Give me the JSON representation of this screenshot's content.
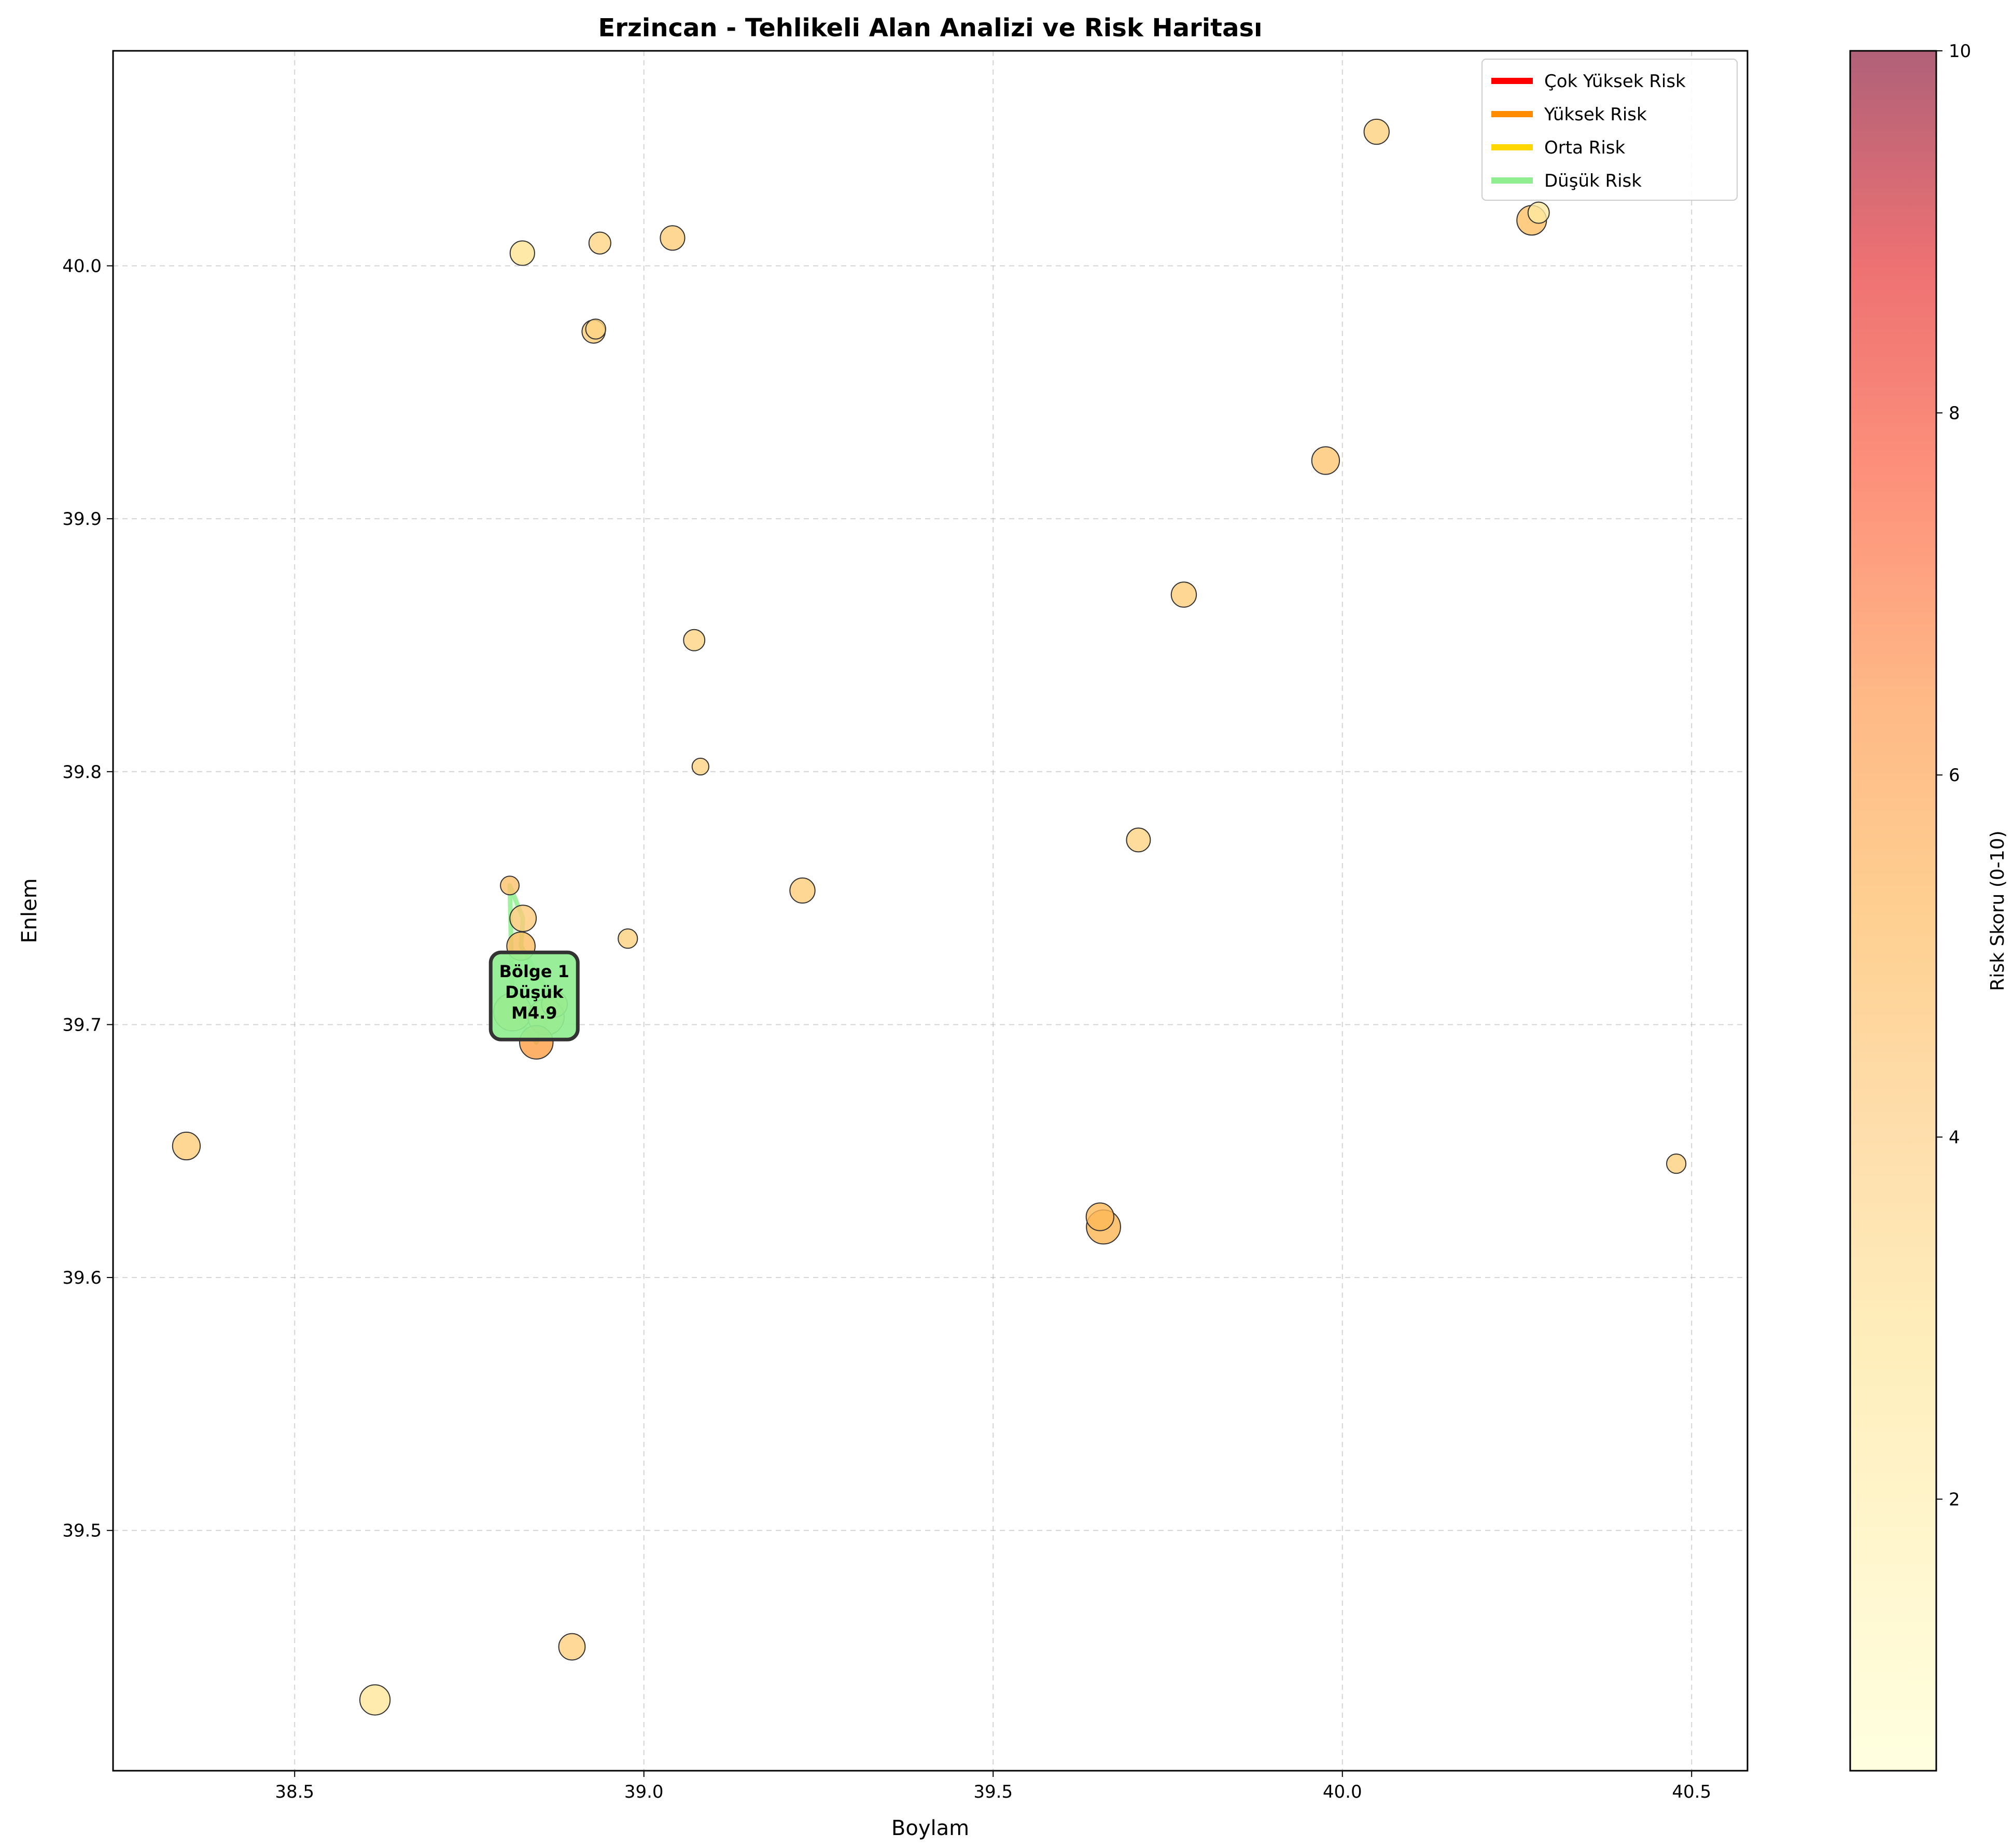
{
  "chart_data": {
    "type": "scatter",
    "title": "Erzincan - Tehlikeli Alan Analizi ve Risk Haritası",
    "xlabel": "Boylam",
    "ylabel": "Enlem",
    "xlim": [
      38.24,
      40.58
    ],
    "ylim": [
      39.405,
      40.085
    ],
    "xticks": [
      "38.5",
      "39.0",
      "39.5",
      "40.0",
      "40.5"
    ],
    "yticks": [
      "39.5",
      "39.6",
      "39.7",
      "39.8",
      "39.9",
      "40.0"
    ],
    "grid": true,
    "legend_position": "top-right",
    "legend": [
      {
        "label": "Çok Yüksek Risk",
        "color": "#ff0000"
      },
      {
        "label": "Yüksek Risk",
        "color": "#ff8c00"
      },
      {
        "label": "Orta Risk",
        "color": "#ffd700"
      },
      {
        "label": "Düşük Risk",
        "color": "#90ee90"
      }
    ],
    "colorbar": {
      "label": "Risk Skoru (0-10)",
      "range": [
        0.5,
        10
      ],
      "ticks": [
        "2",
        "4",
        "6",
        "8",
        "10"
      ]
    },
    "points": [
      {
        "lon": 38.345,
        "lat": 39.652,
        "size": 4.3,
        "risk": 3.9
      },
      {
        "lon": 38.615,
        "lat": 39.433,
        "size": 4.7,
        "risk": 2.6
      },
      {
        "lon": 38.897,
        "lat": 39.454,
        "size": 4.1,
        "risk": 3.8
      },
      {
        "lon": 38.826,
        "lat": 40.005,
        "size": 3.8,
        "risk": 2.8
      },
      {
        "lon": 38.937,
        "lat": 40.009,
        "size": 3.4,
        "risk": 3.5
      },
      {
        "lon": 38.928,
        "lat": 39.974,
        "size": 3.6,
        "risk": 3.9
      },
      {
        "lon": 38.931,
        "lat": 39.975,
        "size": 3.1,
        "risk": 3.6
      },
      {
        "lon": 39.041,
        "lat": 40.011,
        "size": 3.8,
        "risk": 3.9
      },
      {
        "lon": 39.072,
        "lat": 39.852,
        "size": 3.3,
        "risk": 3.6
      },
      {
        "lon": 39.081,
        "lat": 39.802,
        "size": 2.6,
        "risk": 3.6
      },
      {
        "lon": 38.977,
        "lat": 39.734,
        "size": 3.0,
        "risk": 3.7
      },
      {
        "lon": 39.227,
        "lat": 39.753,
        "size": 3.9,
        "risk": 3.9
      },
      {
        "lon": 38.827,
        "lat": 39.742,
        "size": 4.1,
        "risk": 4.0
      },
      {
        "lon": 38.824,
        "lat": 39.731,
        "size": 4.4,
        "risk": 4.7
      },
      {
        "lon": 38.808,
        "lat": 39.755,
        "size": 2.9,
        "risk": 4.4
      },
      {
        "lon": 38.812,
        "lat": 39.705,
        "size": 5.9,
        "risk": 4.3
      },
      {
        "lon": 38.86,
        "lat": 39.703,
        "size": 5.6,
        "risk": 3.9
      },
      {
        "lon": 38.846,
        "lat": 39.693,
        "size": 5.2,
        "risk": 5.9
      },
      {
        "lon": 38.872,
        "lat": 39.708,
        "size": 4.0,
        "risk": 4.2
      },
      {
        "lon": 39.708,
        "lat": 39.773,
        "size": 3.7,
        "risk": 3.6
      },
      {
        "lon": 39.773,
        "lat": 39.87,
        "size": 3.9,
        "risk": 3.9
      },
      {
        "lon": 39.976,
        "lat": 39.923,
        "size": 4.3,
        "risk": 4.2
      },
      {
        "lon": 40.049,
        "lat": 40.053,
        "size": 3.9,
        "risk": 3.7
      },
      {
        "lon": 40.271,
        "lat": 40.018,
        "size": 4.6,
        "risk": 4.6
      },
      {
        "lon": 40.281,
        "lat": 40.021,
        "size": 3.3,
        "risk": 2.3
      },
      {
        "lon": 39.658,
        "lat": 39.62,
        "size": 5.3,
        "risk": 5.1
      },
      {
        "lon": 39.653,
        "lat": 39.624,
        "size": 4.3,
        "risk": 4.9
      },
      {
        "lon": 40.478,
        "lat": 39.645,
        "size": 3.0,
        "risk": 3.7
      }
    ],
    "zones": [
      {
        "name": "Bölge 1",
        "risk_label": "Düşük",
        "magnitude": "M4.9",
        "color": "#90ee90",
        "polygon": [
          [
            38.808,
            39.755
          ],
          [
            38.827,
            39.742
          ],
          [
            38.824,
            39.731
          ],
          [
            38.872,
            39.708
          ],
          [
            38.846,
            39.693
          ],
          [
            38.812,
            39.705
          ],
          [
            38.808,
            39.755
          ]
        ]
      }
    ]
  }
}
